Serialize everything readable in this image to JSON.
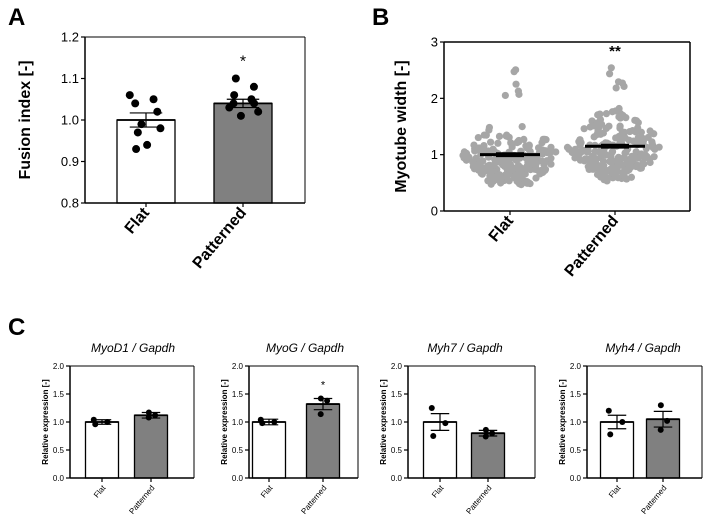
{
  "panels": {
    "a": "A",
    "b": "B",
    "c": "C"
  },
  "chart_data": [
    {
      "id": "A",
      "type": "bar",
      "ylabel": "Fusion index [-]",
      "ylim": [
        0.8,
        1.2
      ],
      "yticks": [
        "0.8",
        "0.9",
        "1.0",
        "1.1",
        "1.2"
      ],
      "categories": [
        "Flat",
        "Patterned"
      ],
      "values": [
        1.0,
        1.04
      ],
      "errors": [
        0.017,
        0.01
      ],
      "colors": [
        "#ffffff",
        "#808080"
      ],
      "points": [
        [
          0.93,
          0.94,
          0.97,
          0.98,
          0.99,
          1.02,
          1.04,
          1.05,
          1.06
        ],
        [
          1.01,
          1.02,
          1.03,
          1.04,
          1.04,
          1.05,
          1.06,
          1.08,
          1.1
        ]
      ],
      "annotations": [
        "",
        "*"
      ]
    },
    {
      "id": "B",
      "type": "scatter",
      "ylabel": "Myotube width [-]",
      "ylim": [
        0,
        3
      ],
      "yticks": [
        "0",
        "1",
        "2",
        "3"
      ],
      "categories": [
        "Flat",
        "Patterned"
      ],
      "means": [
        1.0,
        1.15
      ],
      "errors": [
        0.03,
        0.03
      ],
      "point_color": "#a6a6a6",
      "annotations": [
        "",
        "**"
      ]
    },
    {
      "id": "C1",
      "type": "bar",
      "title": "MyoD1 / Gapdh",
      "ylabel": "Relative expression [-]",
      "ylim": [
        0,
        2
      ],
      "yticks": [
        "0.0",
        "0.5",
        "1.0",
        "1.5",
        "2.0"
      ],
      "categories": [
        "Flat",
        "Patterned"
      ],
      "values": [
        1.0,
        1.12
      ],
      "errors": [
        0.04,
        0.05
      ],
      "points": [
        [
          0.96,
          1.0,
          1.04
        ],
        [
          1.08,
          1.12,
          1.17
        ]
      ],
      "annotations": [
        "",
        ""
      ]
    },
    {
      "id": "C2",
      "type": "bar",
      "title": "MyoG / Gapdh",
      "ylabel": "Relative expression [-]",
      "ylim": [
        0,
        2
      ],
      "yticks": [
        "0.0",
        "0.5",
        "1.0",
        "1.5",
        "2.0"
      ],
      "categories": [
        "Flat",
        "Patterned"
      ],
      "values": [
        1.0,
        1.32
      ],
      "errors": [
        0.05,
        0.1
      ],
      "points": [
        [
          0.98,
          1.0,
          1.04
        ],
        [
          1.14,
          1.38,
          1.42
        ]
      ],
      "annotations": [
        "",
        "*"
      ]
    },
    {
      "id": "C3",
      "type": "bar",
      "title": "Myh7 / Gapdh",
      "ylabel": "Relative expression [-]",
      "ylim": [
        0,
        2
      ],
      "yticks": [
        "0.0",
        "0.5",
        "1.0",
        "1.5",
        "2.0"
      ],
      "categories": [
        "Flat",
        "Patterned"
      ],
      "values": [
        1.0,
        0.8
      ],
      "errors": [
        0.15,
        0.05
      ],
      "points": [
        [
          0.75,
          0.98,
          1.25
        ],
        [
          0.74,
          0.8,
          0.86
        ]
      ],
      "annotations": [
        "",
        ""
      ]
    },
    {
      "id": "C4",
      "type": "bar",
      "title": "Myh4 / Gapdh",
      "ylabel": "Relative expression [-]",
      "ylim": [
        0,
        2
      ],
      "yticks": [
        "0.0",
        "0.5",
        "1.0",
        "1.5",
        "2.0"
      ],
      "categories": [
        "Flat",
        "Patterned"
      ],
      "values": [
        1.0,
        1.05
      ],
      "errors": [
        0.12,
        0.14
      ],
      "points": [
        [
          0.78,
          1.0,
          1.2
        ],
        [
          0.86,
          1.02,
          1.3
        ]
      ],
      "annotations": [
        "",
        ""
      ]
    }
  ]
}
